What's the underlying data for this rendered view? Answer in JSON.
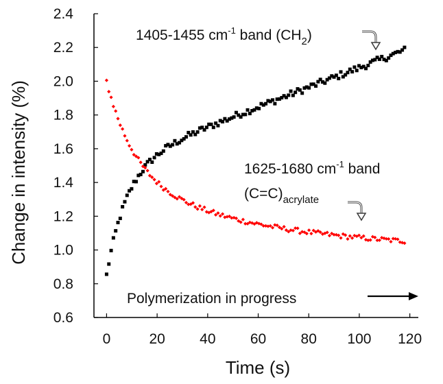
{
  "chart_data": {
    "type": "scatter",
    "xlabel": "Time (s)",
    "ylabel": "Change in intensity (%)",
    "xlim": [
      -5,
      122
    ],
    "ylim": [
      0.6,
      2.4
    ],
    "xticks": [
      0,
      20,
      40,
      60,
      80,
      100,
      120
    ],
    "yticks": [
      0.6,
      0.8,
      1.0,
      1.2,
      1.4,
      1.6,
      1.8,
      2.0,
      2.2,
      2.4
    ],
    "xtick_labels": [
      "0",
      "20",
      "40",
      "60",
      "80",
      "100",
      "120"
    ],
    "ytick_labels": [
      "0.6",
      "0.8",
      "1.0",
      "1.2",
      "1.4",
      "1.6",
      "1.8",
      "2.0",
      "2.2",
      "2.4"
    ],
    "grid": false,
    "annotations": {
      "ch2": {
        "prefix": "1405-1455 cm",
        "sup": "-1",
        "mid": " band (CH",
        "sub": "2",
        "suffix": ")"
      },
      "acrylate_line1": {
        "prefix": "1625-1680 cm",
        "sup": "-1",
        "suffix": " band"
      },
      "acrylate_line2": {
        "prefix": "(C=C)",
        "sub": "acrylate"
      },
      "progress": "Polymerization in progress"
    },
    "series": [
      {
        "color": "#000000",
        "marker": "square",
        "model": "0.85 + 0.65*(1-exp(-t/8)) + 0.0058*t",
        "x_start": 0,
        "x_end": 118,
        "x_step": 0.9,
        "noise": 0.02
      },
      {
        "color": "#ff0000",
        "marker": "diamond",
        "model": "1.0 + 0.55*exp(-t/11) + 0.45*exp(-t/55)",
        "x_start": 0,
        "x_end": 118,
        "x_step": 0.9,
        "noise": 0.015
      }
    ]
  }
}
